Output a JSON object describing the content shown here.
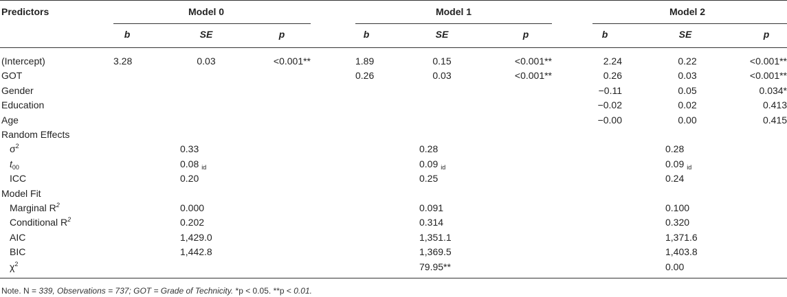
{
  "header": {
    "predictors": "Predictors",
    "models": [
      "Model 0",
      "Model 1",
      "Model 2"
    ],
    "cols": [
      "b",
      "SE",
      "p"
    ]
  },
  "rows": [
    {
      "label": "(Intercept)",
      "indent": false,
      "m": [
        [
          "3.28",
          "0.03",
          "<0.001**"
        ],
        [
          "1.89",
          "0.15",
          "<0.001**"
        ],
        [
          "2.24",
          "0.22",
          "<0.001**"
        ]
      ]
    },
    {
      "label": "GOT",
      "indent": false,
      "m": [
        [
          "",
          "",
          ""
        ],
        [
          "0.26",
          "0.03",
          "<0.001**"
        ],
        [
          "0.26",
          "0.03",
          "<0.001**"
        ]
      ]
    },
    {
      "label": "Gender",
      "indent": false,
      "m": [
        [
          "",
          "",
          ""
        ],
        [
          "",
          "",
          ""
        ],
        [
          "−0.11",
          "0.05",
          "0.034*"
        ]
      ]
    },
    {
      "label": "Education",
      "indent": false,
      "m": [
        [
          "",
          "",
          ""
        ],
        [
          "",
          "",
          ""
        ],
        [
          "−0.02",
          "0.02",
          "0.413"
        ]
      ]
    },
    {
      "label": "Age",
      "indent": false,
      "m": [
        [
          "",
          "",
          ""
        ],
        [
          "",
          "",
          ""
        ],
        [
          "−0.00",
          "0.00",
          "0.415"
        ]
      ]
    },
    {
      "label": "Random Effects",
      "indent": false,
      "m": [
        [
          "",
          "",
          ""
        ],
        [
          "",
          "",
          ""
        ],
        [
          "",
          "",
          ""
        ]
      ]
    },
    {
      "label": "σ",
      "sup": "2",
      "indent": true,
      "m": [
        [
          "",
          "0.33",
          ""
        ],
        [
          "",
          "0.28",
          ""
        ],
        [
          "",
          "0.28",
          ""
        ]
      ]
    },
    {
      "label": "t",
      "sub": "00",
      "indent": true,
      "m": [
        [
          "",
          "0.08",
          ""
        ],
        [
          "",
          "0.09",
          ""
        ],
        [
          "",
          "0.09",
          ""
        ]
      ],
      "se_sub": "id"
    },
    {
      "label": "ICC",
      "indent": true,
      "m": [
        [
          "",
          "0.20",
          ""
        ],
        [
          "",
          "0.25",
          ""
        ],
        [
          "",
          "0.24",
          ""
        ]
      ]
    },
    {
      "label": "Model Fit",
      "indent": false,
      "m": [
        [
          "",
          "",
          ""
        ],
        [
          "",
          "",
          ""
        ],
        [
          "",
          "",
          ""
        ]
      ]
    },
    {
      "label": "Marginal R",
      "sup": "2",
      "indent": true,
      "m": [
        [
          "",
          "0.000",
          ""
        ],
        [
          "",
          "0.091",
          ""
        ],
        [
          "",
          "0.100",
          ""
        ]
      ]
    },
    {
      "label": "Conditional R",
      "sup": "2",
      "indent": true,
      "m": [
        [
          "",
          "0.202",
          ""
        ],
        [
          "",
          "0.314",
          ""
        ],
        [
          "",
          "0.320",
          ""
        ]
      ]
    },
    {
      "label": "AIC",
      "indent": true,
      "m": [
        [
          "",
          "1,429.0",
          ""
        ],
        [
          "",
          "1,351.1",
          ""
        ],
        [
          "",
          "1,371.6",
          ""
        ]
      ]
    },
    {
      "label": "BIC",
      "indent": true,
      "m": [
        [
          "",
          "1,442.8",
          ""
        ],
        [
          "",
          "1,369.5",
          ""
        ],
        [
          "",
          "1,403.8",
          ""
        ]
      ]
    },
    {
      "label": "χ",
      "sup": "2",
      "indent": true,
      "m": [
        [
          "",
          "",
          ""
        ],
        [
          "",
          "79.95**",
          ""
        ],
        [
          "",
          "0.00",
          ""
        ]
      ]
    }
  ],
  "note": {
    "prefix": "Note. N = ",
    "italic1": "339, Observations = 737; GOT = Grade of Technicity.",
    "mid": " *p < 0.05. **p < ",
    "italic2": "0.01."
  }
}
